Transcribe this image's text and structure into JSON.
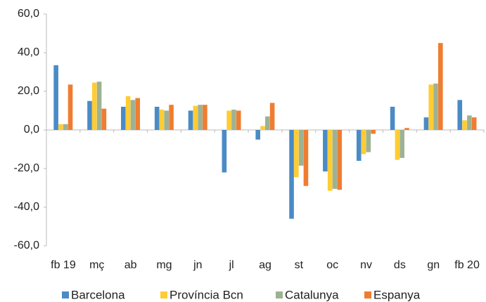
{
  "chart_data": {
    "type": "bar",
    "categories": [
      "fb 19",
      "mç",
      "ab",
      "mg",
      "jn",
      "jl",
      "ag",
      "st",
      "oc",
      "nv",
      "ds",
      "gn",
      "fb 20"
    ],
    "series": [
      {
        "name": "Barcelona",
        "color": "#4a8bc6",
        "values": [
          33.5,
          15,
          12,
          12,
          10,
          -22,
          -5,
          -46,
          -21.5,
          -16,
          12,
          6.5,
          15.5
        ]
      },
      {
        "name": "Província Bcn",
        "color": "#ffcc33",
        "values": [
          3,
          24.5,
          17.5,
          10.5,
          12.5,
          10,
          2,
          -24.5,
          -31.5,
          -12.5,
          -15.5,
          23.5,
          5
        ]
      },
      {
        "name": "Catalunya",
        "color": "#9db293",
        "values": [
          3,
          25,
          15.5,
          10,
          13,
          10.5,
          7,
          -18.5,
          -30.5,
          -11.5,
          -14.5,
          24,
          7.5
        ]
      },
      {
        "name": "Espanya",
        "color": "#ef7d31",
        "values": [
          23.5,
          11,
          16.5,
          13,
          13,
          10,
          14,
          -29,
          -31,
          -2,
          1,
          45,
          6.5
        ]
      }
    ],
    "ylim": [
      -60,
      60
    ],
    "yticks": [
      {
        "value": -60,
        "label": "-60,0"
      },
      {
        "value": -40,
        "label": "-40,0"
      },
      {
        "value": -20,
        "label": "-20,0"
      },
      {
        "value": 0,
        "label": "0,0"
      },
      {
        "value": 20,
        "label": "20,0"
      },
      {
        "value": 40,
        "label": "40,0"
      },
      {
        "value": 60,
        "label": "60,0"
      }
    ],
    "legend": "bottom"
  }
}
